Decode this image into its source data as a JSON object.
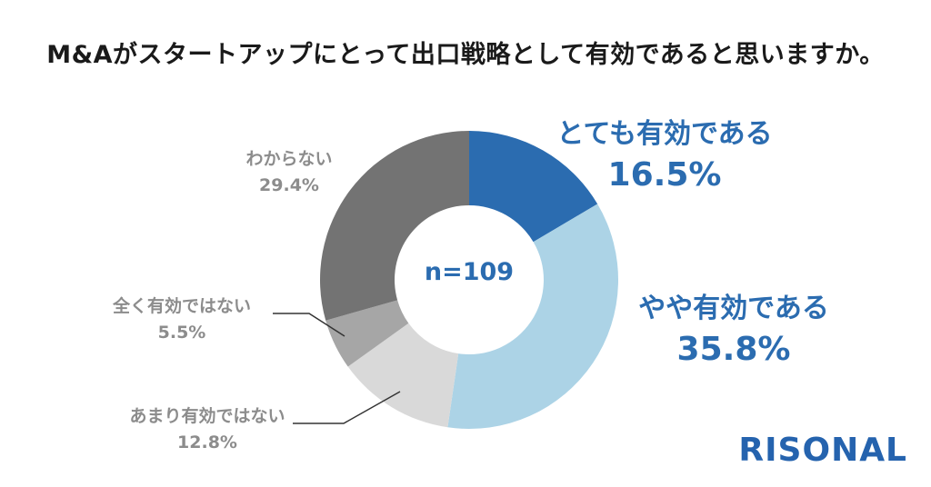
{
  "title": "M&Aがスタートアップにとって出口戦略として有効であると思いますか。",
  "logo": "RISONAL",
  "chart_data": {
    "type": "pie",
    "center_label": "n=109",
    "slices": [
      {
        "label": "とても有効である",
        "value": 16.5,
        "display": "16.5%",
        "color": "#2b6cb0"
      },
      {
        "label": "やや有効である",
        "value": 35.8,
        "display": "35.8%",
        "color": "#acd3e6"
      },
      {
        "label": "あまり有効ではない",
        "value": 12.8,
        "display": "12.8%",
        "color": "#d9d9d9"
      },
      {
        "label": "全く有効ではない",
        "value": 5.5,
        "display": "5.5%",
        "color": "#a6a6a6"
      },
      {
        "label": "わからない",
        "value": 29.4,
        "display": "29.4%",
        "color": "#737373"
      }
    ]
  }
}
